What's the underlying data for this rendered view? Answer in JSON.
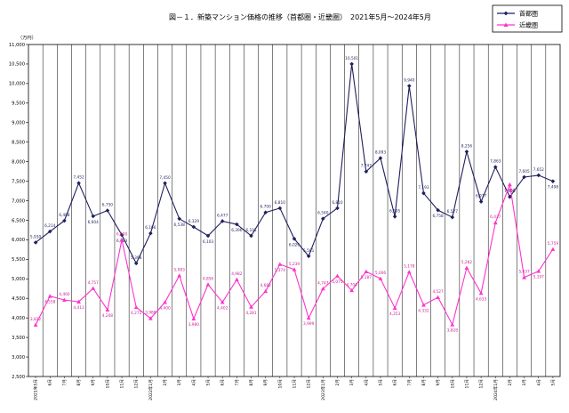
{
  "chart_data": {
    "type": "line",
    "title": "図－１．新築マンション価格の推移（首都圏・近畿圏）　2021年5月～2024年5月",
    "unit_label": "（万円）",
    "ylim": [
      2500,
      11000
    ],
    "yticks": [
      2500,
      3000,
      3500,
      4000,
      4500,
      5000,
      5500,
      6000,
      6500,
      7000,
      7500,
      8000,
      8500,
      9000,
      9500,
      10000,
      10500,
      11000
    ],
    "ytick_labels": [
      "2,500",
      "3,000",
      "3,500",
      "4,000",
      "4,500",
      "5,000",
      "5,500",
      "6,000",
      "6,500",
      "7,000",
      "7,500",
      "8,000",
      "8,500",
      "9,000",
      "9,500",
      "10,000",
      "10,500",
      "11,000"
    ],
    "categories": [
      "2021年5月",
      "6月",
      "7月",
      "8月",
      "9月",
      "10月",
      "11月",
      "12月",
      "2022年1月",
      "2月",
      "3月",
      "4月",
      "5月",
      "6月",
      "7月",
      "8月",
      "9月",
      "10月",
      "11月",
      "12月",
      "2023年1月",
      "2月",
      "3月",
      "4月",
      "5月",
      "6月",
      "7月",
      "8月",
      "9月",
      "10月",
      "11月",
      "12月",
      "2024年1月",
      "2月",
      "3月",
      "4月",
      "5月"
    ],
    "series": [
      {
        "name": "首都圏",
        "color": "#1f1f5e",
        "marker": "diamond",
        "values": [
          5930,
          6214,
          6488,
          7452,
          6604,
          6750,
          6123,
          5398,
          6166,
          7450,
          6538,
          6329,
          6103,
          6477,
          6396,
          6101,
          6700,
          6810,
          6026,
          5581,
          6540,
          6810,
          10501,
          7747,
          8093,
          6595,
          9940,
          7193,
          6758,
          6577,
          8256,
          6977,
          7863,
          7098,
          7605,
          7652,
          7498
        ],
        "labels": [
          "5,930",
          "6,214",
          "6,488",
          "7,452",
          "6,604",
          "6,750",
          "6,123",
          "5,398",
          "6,166",
          "7,450",
          "6,538",
          "6,329",
          "6,103",
          "6,477",
          "6,396",
          "6,101",
          "6,700",
          "6,810",
          "6,026",
          "5,581",
          "6,540",
          "6,810",
          "10,501",
          "7,747",
          "8,093",
          "6,595",
          "9,940",
          "7,193",
          "6,758",
          "6,577",
          "8,256",
          "6,977",
          "7,863",
          "7,098",
          "7,605",
          "7,652",
          "7,498"
        ]
      },
      {
        "name": "近畿圏",
        "color": "#ff33cc",
        "marker": "triangle",
        "values": [
          3822,
          4558,
          4460,
          4413,
          4757,
          4208,
          6000,
          4272,
          3988,
          4400,
          5083,
          3980,
          4856,
          4402,
          4982,
          4281,
          4682,
          5374,
          5239,
          3999,
          4747,
          5075,
          4704,
          5187,
          5006,
          4253,
          5178,
          4332,
          4527,
          3828,
          5282,
          4633,
          6437,
          7416,
          5037,
          5197,
          5759
        ],
        "labels": [
          "3,822",
          "4,558",
          "4,460",
          "4,413",
          "4,757",
          "4,208",
          "6,000",
          "4,272",
          "3,988",
          "4,400",
          "5,083",
          "3,980",
          "4,856",
          "4,402",
          "4,982",
          "4,281",
          "4,682",
          "5,374",
          "5,239",
          "3,999",
          "4,747",
          "5,075",
          "4,704",
          "5,187",
          "5,006",
          "4,253",
          "5,178",
          "4,332",
          "4,527",
          "3,828",
          "5,282",
          "4,633",
          "6,437",
          "7,416",
          "5,037",
          "5,197",
          "5,759"
        ]
      }
    ],
    "legend_position": "top-right",
    "grid": "vertical"
  }
}
